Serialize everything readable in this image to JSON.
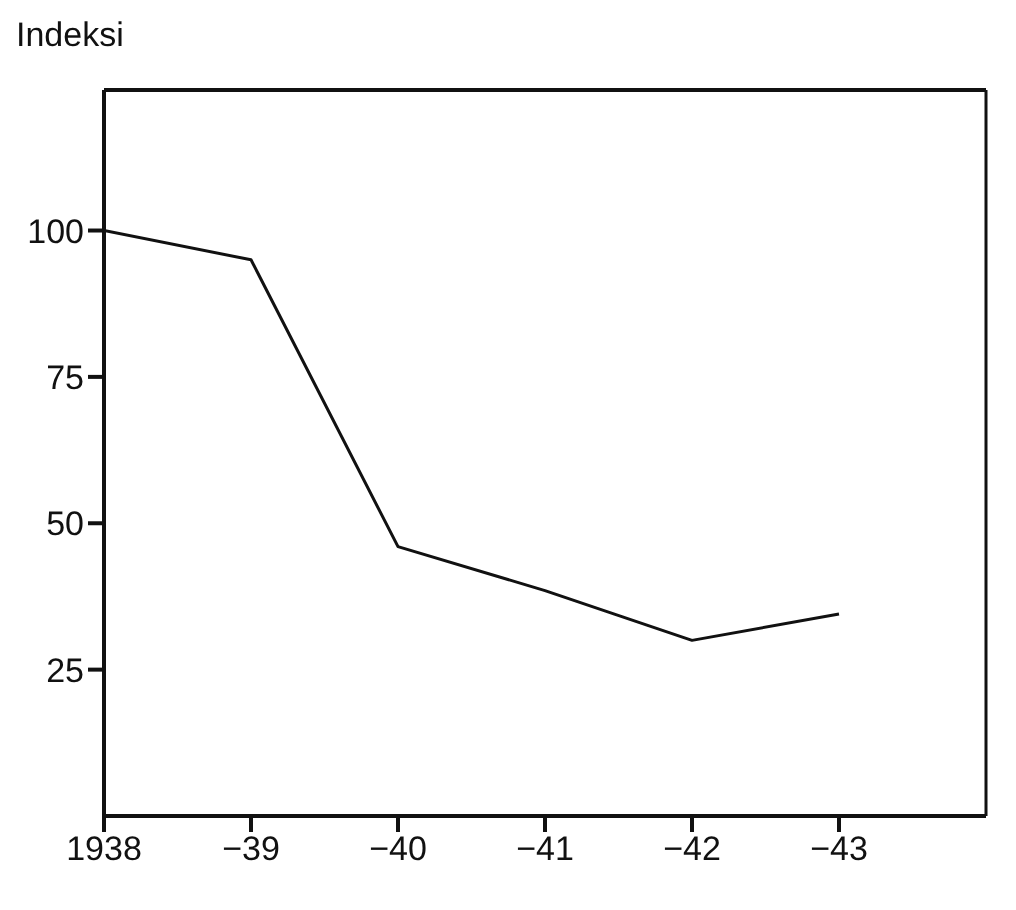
{
  "chart_data": {
    "type": "line",
    "ylabel": "Indeksi",
    "categories": [
      "1938",
      "−39",
      "−40",
      "−41",
      "−42",
      "−43"
    ],
    "series": [
      {
        "color": "#111111",
        "values": [
          100,
          95,
          46,
          38.5,
          30,
          34.5
        ]
      }
    ],
    "ylim": [
      0,
      124
    ],
    "yticks": [
      25,
      50,
      75,
      100
    ],
    "marker": "none",
    "line_style": "solid"
  }
}
